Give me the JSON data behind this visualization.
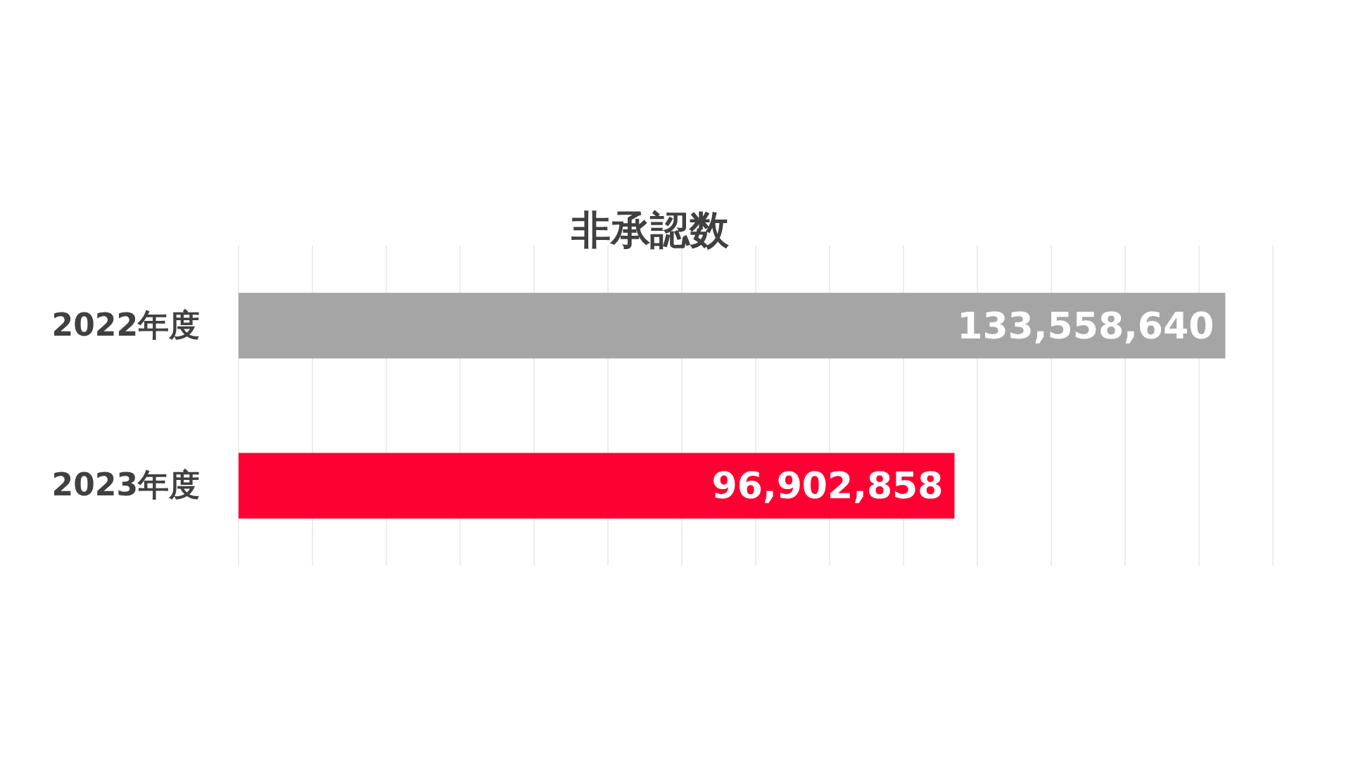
{
  "chart_data": {
    "type": "bar",
    "orientation": "horizontal",
    "title": "非承認数",
    "categories": [
      "2022年度",
      "2023年度"
    ],
    "values": [
      133558640,
      96902858
    ],
    "value_labels": [
      "133,558,640",
      "96,902,858"
    ],
    "colors": [
      "#a5a5a5",
      "#ff0033"
    ],
    "grid": "x",
    "tick_labels": "y"
  }
}
